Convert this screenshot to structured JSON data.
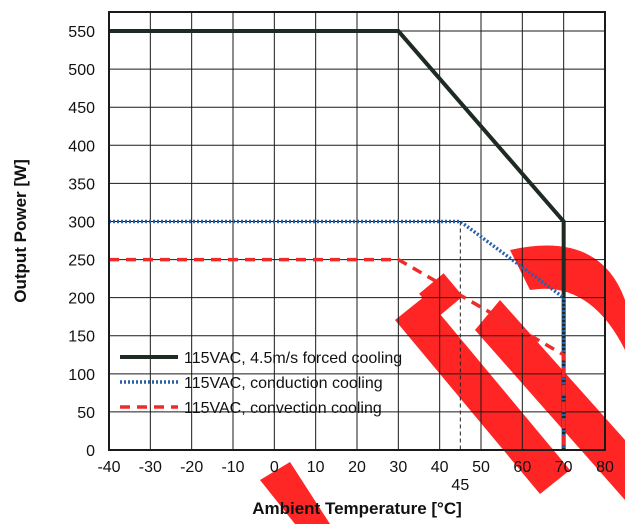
{
  "chart_data": {
    "type": "line",
    "title": "",
    "xlabel": "Ambient Temperature [°C]",
    "ylabel": "Output Power [W]",
    "xlim": [
      -40,
      80
    ],
    "ylim": [
      0,
      575
    ],
    "xticks": [
      "-40",
      "-30",
      "-20",
      "-10",
      "0",
      "10",
      "20",
      "30",
      "40",
      "50",
      "60",
      "70",
      "80"
    ],
    "yticks": [
      "0",
      "50",
      "100",
      "150",
      "200",
      "250",
      "300",
      "350",
      "400",
      "450",
      "500",
      "550"
    ],
    "grid": true,
    "legend_position": "bottom-left",
    "annotation": {
      "label": "45",
      "x": 45,
      "y": 300
    },
    "series": [
      {
        "name": "115VAC, 4.5m/s forced cooling",
        "color": "#1e2a22",
        "style": "solid",
        "x": [
          -40,
          30,
          70,
          70
        ],
        "y": [
          550,
          550,
          300,
          0
        ]
      },
      {
        "name": "115VAC, conduction cooling",
        "color": "#2a5fa8",
        "style": "dotted",
        "x": [
          -40,
          45,
          70,
          70
        ],
        "y": [
          300,
          300,
          200,
          0
        ]
      },
      {
        "name": "115VAC, convection cooling",
        "color": "#ee2b2b",
        "style": "dashed",
        "x": [
          -40,
          30,
          70,
          70
        ],
        "y": [
          250,
          250,
          125,
          0
        ]
      }
    ]
  }
}
